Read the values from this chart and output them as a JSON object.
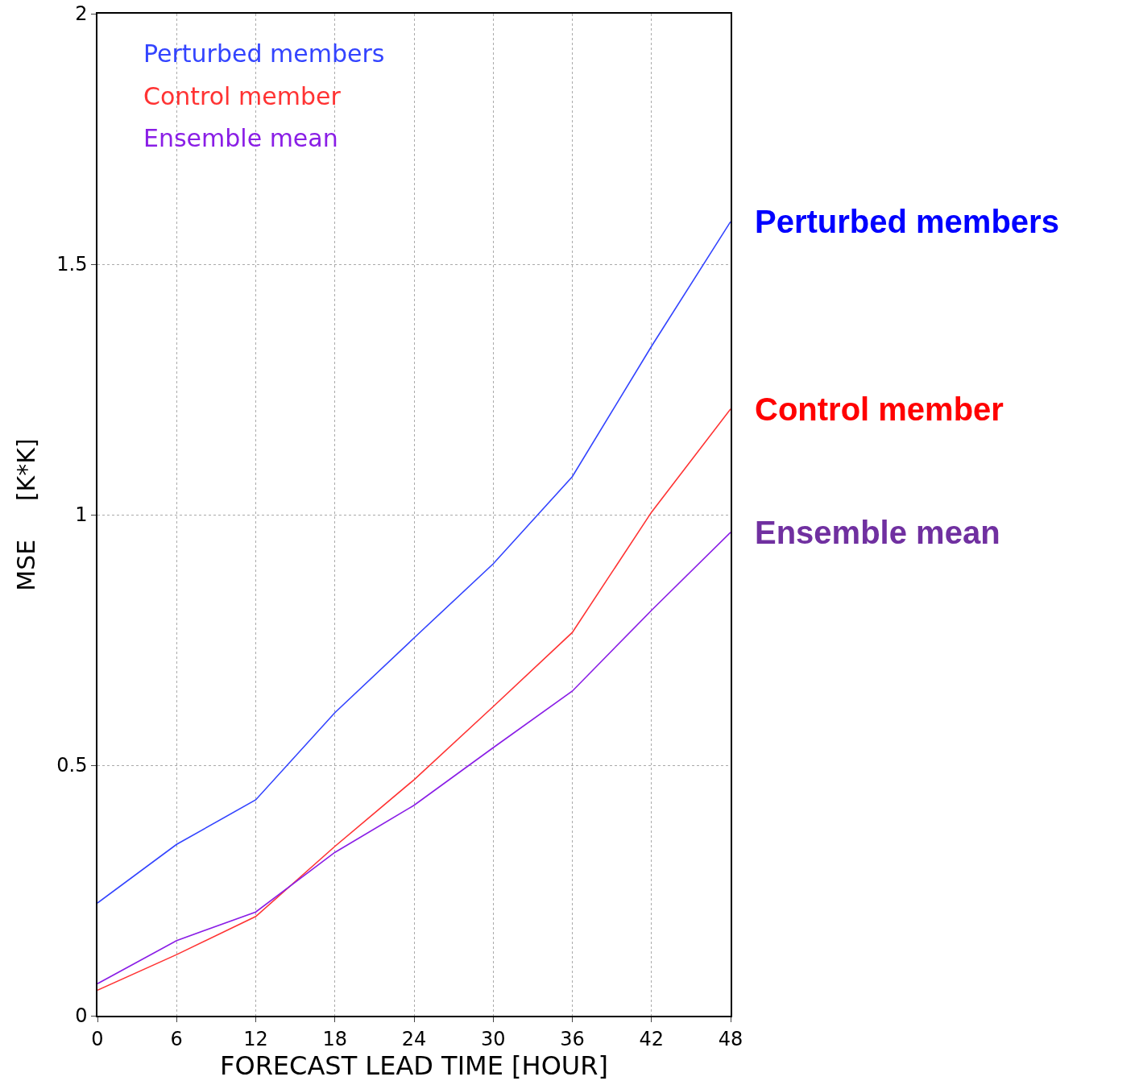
{
  "chart_data": {
    "type": "line",
    "xlabel": "FORECAST LEAD TIME [HOUR]",
    "ylabel": "MSE     [K*K]",
    "x": [
      0,
      6,
      12,
      18,
      24,
      30,
      36,
      42,
      48
    ],
    "series": [
      {
        "name": "Perturbed members",
        "color": "#3344ff",
        "values": [
          0.225,
          0.342,
          0.431,
          0.605,
          0.754,
          0.902,
          1.076,
          1.336,
          1.585
        ]
      },
      {
        "name": "Control member",
        "color": "#ff3333",
        "values": [
          0.051,
          0.122,
          0.198,
          0.338,
          0.471,
          0.617,
          0.765,
          1.005,
          1.211
        ]
      },
      {
        "name": "Ensemble mean",
        "color": "#8a1ee6",
        "values": [
          0.064,
          0.15,
          0.207,
          0.326,
          0.42,
          0.535,
          0.648,
          0.809,
          0.965
        ]
      }
    ],
    "xlim": [
      0,
      48
    ],
    "xticks": [
      0,
      6,
      12,
      18,
      24,
      30,
      36,
      42,
      48
    ],
    "ylim": [
      0,
      2
    ],
    "yticks": [
      0,
      0.5,
      1,
      1.5,
      2
    ],
    "grid": true,
    "legend": "top left",
    "marker": "none",
    "line_style": "solid",
    "annotations": [
      "Perturbed members",
      "Control member",
      "Ensemble mean"
    ]
  }
}
